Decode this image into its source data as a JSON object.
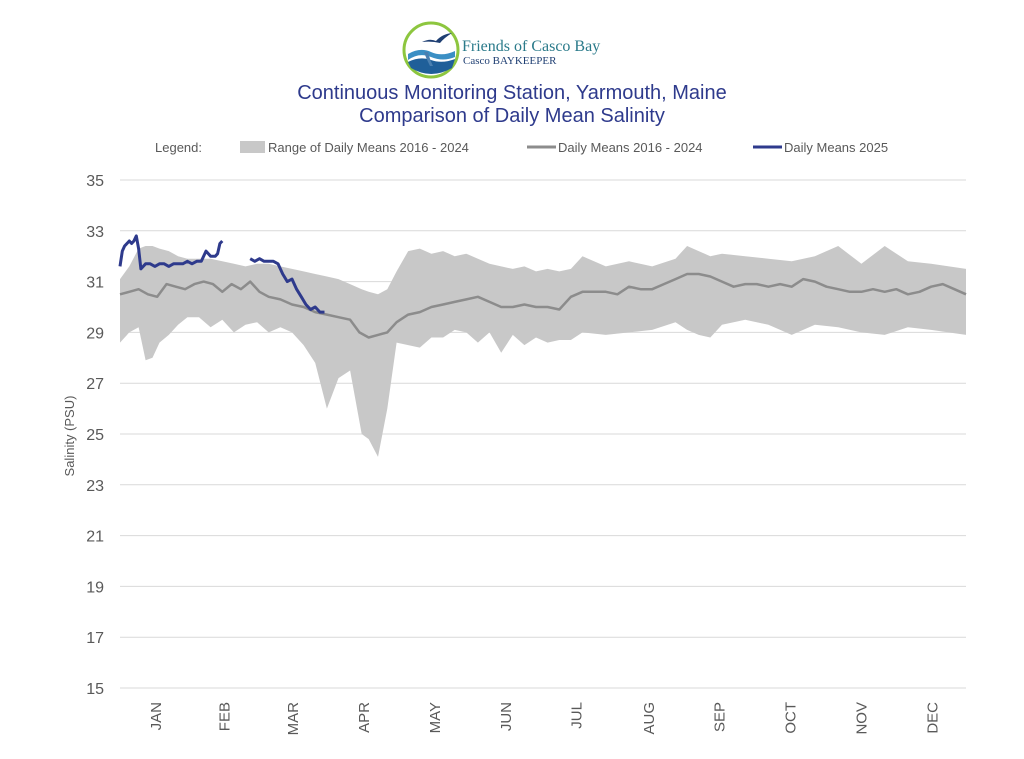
{
  "logo": {
    "name": "Friends of Casco Bay",
    "sub_name": "Casco BAYKEEPER"
  },
  "colors": {
    "title": "#2e3a8c",
    "range_fill": "#c8c8c8",
    "mean_line": "#8c8c8c",
    "line_2025": "#2e3a8c",
    "grid": "#d9d9d9",
    "tick_text": "#595959"
  },
  "chart_data": {
    "type": "area",
    "title": "Continuous Monitoring Station, Yarmouth, Maine",
    "subtitle": "Comparison of Daily Mean Salinity",
    "ylabel": "Salinity (PSU)",
    "xlabel": "",
    "ylim": [
      15,
      35
    ],
    "yticks": [
      "35",
      "33",
      "31",
      "29",
      "27",
      "25",
      "23",
      "21",
      "19",
      "17",
      "15"
    ],
    "months": [
      "JAN",
      "FEB",
      "MAR",
      "APR",
      "MAY",
      "JUN",
      "JUL",
      "AUG",
      "SEP",
      "OCT",
      "NOV",
      "DEC"
    ],
    "grid": "horizontal",
    "legend": {
      "label": "Legend:",
      "position": "top",
      "entries": [
        "Range of Daily Means 2016 - 2024",
        "Daily Means 2016 - 2024",
        "Daily Means 2025"
      ]
    },
    "series": [
      {
        "name": "Range of Daily Means 2016 - 2024",
        "kind": "range",
        "x_day": [
          1,
          5,
          9,
          12,
          15,
          18,
          22,
          26,
          30,
          35,
          40,
          45,
          50,
          55,
          60,
          65,
          70,
          75,
          80,
          85,
          90,
          95,
          100,
          105,
          108,
          112,
          116,
          120,
          125,
          130,
          135,
          140,
          145,
          150,
          155,
          160,
          165,
          170,
          175,
          180,
          185,
          190,
          195,
          200,
          210,
          220,
          230,
          240,
          245,
          250,
          255,
          260,
          270,
          280,
          290,
          300,
          310,
          320,
          330,
          340,
          350,
          365
        ],
        "low": [
          28.6,
          29.0,
          29.2,
          27.9,
          28.0,
          28.6,
          28.9,
          29.3,
          29.6,
          29.6,
          29.2,
          29.5,
          29.0,
          29.3,
          29.4,
          29.0,
          29.2,
          29.0,
          28.5,
          27.8,
          26.0,
          27.2,
          27.5,
          25.0,
          24.8,
          24.1,
          26.0,
          28.6,
          28.5,
          28.4,
          28.8,
          28.8,
          29.1,
          29.0,
          28.6,
          29.0,
          28.2,
          28.9,
          28.5,
          28.8,
          28.6,
          28.7,
          28.7,
          29.0,
          28.9,
          29.0,
          29.1,
          29.4,
          29.1,
          28.9,
          28.8,
          29.3,
          29.5,
          29.3,
          28.9,
          29.3,
          29.2,
          29.0,
          28.9,
          29.2,
          29.1,
          28.9
        ],
        "high": [
          31.1,
          31.6,
          32.3,
          32.4,
          32.4,
          32.3,
          32.2,
          32.0,
          31.9,
          31.9,
          31.9,
          31.8,
          31.7,
          31.6,
          31.7,
          31.7,
          31.6,
          31.5,
          31.4,
          31.3,
          31.2,
          31.1,
          30.9,
          30.7,
          30.6,
          30.5,
          30.7,
          31.4,
          32.2,
          32.3,
          32.1,
          32.2,
          32.0,
          32.1,
          31.9,
          31.7,
          31.6,
          31.5,
          31.6,
          31.4,
          31.5,
          31.4,
          31.5,
          32.0,
          31.6,
          31.8,
          31.6,
          31.9,
          32.4,
          32.2,
          32.0,
          32.1,
          32.0,
          31.9,
          31.8,
          32.0,
          32.4,
          31.7,
          32.4,
          31.8,
          31.7,
          31.5
        ]
      },
      {
        "name": "Daily Means 2016 - 2024",
        "kind": "line",
        "x_day": [
          1,
          5,
          9,
          13,
          17,
          21,
          25,
          29,
          33,
          37,
          41,
          45,
          49,
          53,
          57,
          61,
          65,
          70,
          75,
          80,
          85,
          90,
          95,
          100,
          104,
          108,
          112,
          116,
          120,
          125,
          130,
          135,
          140,
          145,
          150,
          155,
          160,
          165,
          170,
          175,
          180,
          185,
          190,
          195,
          200,
          205,
          210,
          215,
          220,
          225,
          230,
          235,
          240,
          245,
          250,
          255,
          260,
          265,
          270,
          275,
          280,
          285,
          290,
          295,
          300,
          305,
          310,
          315,
          320,
          325,
          330,
          335,
          340,
          345,
          350,
          355,
          360,
          365
        ],
        "y": [
          30.5,
          30.6,
          30.7,
          30.5,
          30.4,
          30.9,
          30.8,
          30.7,
          30.9,
          31.0,
          30.9,
          30.6,
          30.9,
          30.7,
          31.0,
          30.6,
          30.4,
          30.3,
          30.1,
          30.0,
          29.8,
          29.7,
          29.6,
          29.5,
          29.0,
          28.8,
          28.9,
          29.0,
          29.4,
          29.7,
          29.8,
          30.0,
          30.1,
          30.2,
          30.3,
          30.4,
          30.2,
          30.0,
          30.0,
          30.1,
          30.0,
          30.0,
          29.9,
          30.4,
          30.6,
          30.6,
          30.6,
          30.5,
          30.8,
          30.7,
          30.7,
          30.9,
          31.1,
          31.3,
          31.3,
          31.2,
          31.0,
          30.8,
          30.9,
          30.9,
          30.8,
          30.9,
          30.8,
          31.1,
          31.0,
          30.8,
          30.7,
          30.6,
          30.6,
          30.7,
          30.6,
          30.7,
          30.5,
          30.6,
          30.8,
          30.9,
          30.7,
          30.5
        ]
      },
      {
        "name": "Daily Means 2025",
        "kind": "line",
        "segments": [
          {
            "x_day": [
              1,
              2,
              3,
              5,
              6,
              7,
              8,
              9,
              10,
              12,
              14,
              16,
              18,
              20,
              22,
              24,
              26,
              28,
              30,
              32,
              34,
              36,
              38,
              40,
              42,
              43,
              44,
              45
            ],
            "y": [
              31.6,
              32.2,
              32.4,
              32.6,
              32.5,
              32.6,
              32.8,
              32.3,
              31.5,
              31.7,
              31.7,
              31.6,
              31.7,
              31.7,
              31.6,
              31.7,
              31.7,
              31.7,
              31.8,
              31.7,
              31.8,
              31.8,
              32.2,
              32.0,
              32.0,
              32.1,
              32.5,
              32.6
            ]
          },
          {
            "x_day": [
              57,
              59,
              61,
              63,
              65,
              67,
              69,
              71,
              73,
              75,
              77,
              79,
              81,
              83,
              85,
              87,
              89
            ],
            "y": [
              31.9,
              31.8,
              31.9,
              31.8,
              31.8,
              31.8,
              31.7,
              31.3,
              31.0,
              31.1,
              30.7,
              30.4,
              30.1,
              29.9,
              30.0,
              29.8,
              29.8
            ]
          }
        ]
      }
    ]
  }
}
